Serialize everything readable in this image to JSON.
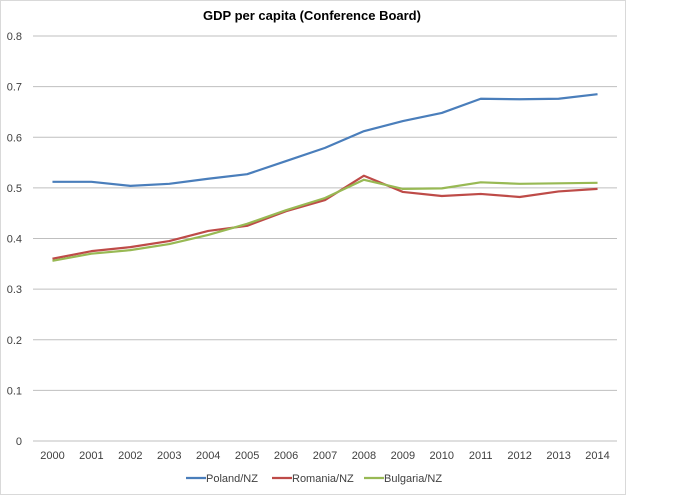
{
  "chart_data": {
    "type": "line",
    "title": "GDP per capita (Conference Board)",
    "xlabel": "",
    "ylabel": "",
    "ylim": [
      0,
      0.8
    ],
    "yticks": [
      "0",
      "0.1",
      "0.2",
      "0.3",
      "0.4",
      "0.5",
      "0.6",
      "0.7",
      "0.8"
    ],
    "grid": true,
    "legend": "bottom",
    "categories": [
      "2000",
      "2001",
      "2002",
      "2003",
      "2004",
      "2005",
      "2006",
      "2007",
      "2008",
      "2009",
      "2010",
      "2011",
      "2012",
      "2013",
      "2014"
    ],
    "series": [
      {
        "name": "Poland/NZ",
        "color": "#4A7EBB",
        "values": [
          0.512,
          0.512,
          0.504,
          0.508,
          0.518,
          0.527,
          0.553,
          0.579,
          0.612,
          0.632,
          0.648,
          0.676,
          0.675,
          0.676,
          0.685
        ]
      },
      {
        "name": "Romania/NZ",
        "color": "#BE4B48",
        "values": [
          0.36,
          0.375,
          0.383,
          0.395,
          0.415,
          0.425,
          0.454,
          0.476,
          0.524,
          0.492,
          0.484,
          0.488,
          0.482,
          0.493,
          0.498
        ]
      },
      {
        "name": "Bulgaria/NZ",
        "color": "#98B954",
        "values": [
          0.356,
          0.37,
          0.377,
          0.389,
          0.407,
          0.429,
          0.456,
          0.48,
          0.516,
          0.498,
          0.499,
          0.511,
          0.508,
          0.509,
          0.51
        ]
      }
    ]
  }
}
